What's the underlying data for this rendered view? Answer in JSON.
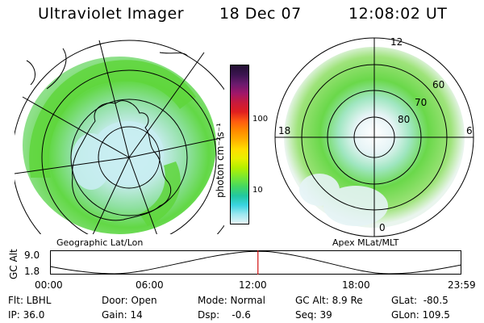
{
  "header": {
    "title": "Ultraviolet Imager",
    "date": "18 Dec 07",
    "time": "12:08:02 UT"
  },
  "colorbar": {
    "unit_label": "photon cm⁻²s⁻¹",
    "tick_labels": [
      "100",
      "10"
    ],
    "colors": [
      "#231033",
      "#3b1450",
      "#6a1a6e",
      "#a0166a",
      "#c81a3c",
      "#e01f1f",
      "#ff5a10",
      "#ff8a00",
      "#ffb000",
      "#ffdd00",
      "#e8f000",
      "#b4f000",
      "#7ae830",
      "#45d860",
      "#22c8a0",
      "#3ad4e0",
      "#9ee8f0",
      "#e6f4f6"
    ]
  },
  "geographic_map": {
    "caption": "Geographic Lat/Lon"
  },
  "apex_map": {
    "caption": "Apex MLat/MLT",
    "mlt_labels": {
      "top": "12",
      "left": "18",
      "right": "6",
      "bottom": "0"
    },
    "lat_labels": [
      "60",
      "70",
      "80"
    ]
  },
  "altitude_plot": {
    "ylabel": "GC Alt",
    "y_ticks": [
      "9.0",
      "1.8"
    ],
    "x_ticks": [
      "00:00",
      "06:00",
      "12:00",
      "18:00",
      "23:59"
    ],
    "current_marker_hour": 12.13
  },
  "status": {
    "filter": "Flt: LBHL",
    "ip": "IP: 36.0",
    "door": "Door: Open",
    "gain": "Gain: 14",
    "mode": "Mode: Normal",
    "dsp": "Dsp:    -0.6",
    "gc_alt": "GC Alt: 8.9 Re",
    "seq": "Seq: 39",
    "glat": "GLat:  -80.5",
    "glon": "GLon: 109.5"
  }
}
